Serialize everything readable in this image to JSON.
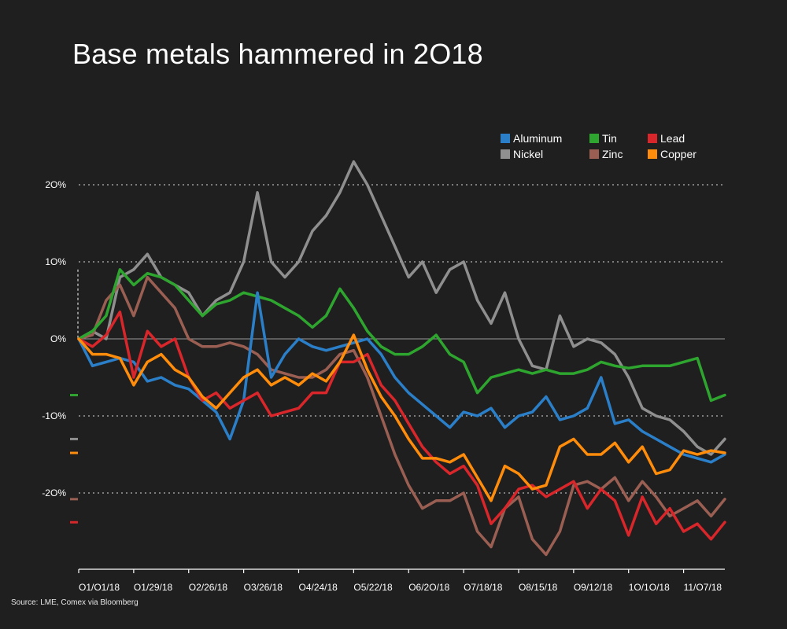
{
  "title": "Base metals hammered in 2O18",
  "source": "Source: LME, Comex via Bloomberg",
  "legend": [
    {
      "name": "Aluminum",
      "color": "#2a7fc8"
    },
    {
      "name": "Tin",
      "color": "#2ea52e"
    },
    {
      "name": "Lead",
      "color": "#d8262a"
    },
    {
      "name": "Nickel",
      "color": "#8f8f8f"
    },
    {
      "name": "Zinc",
      "color": "#9a5f52"
    },
    {
      "name": "Copper",
      "color": "#ff8c0a"
    }
  ],
  "chart_data": {
    "type": "line",
    "title": "Base metals hammered in 2O18",
    "xlabel": "",
    "ylabel": "",
    "ylim": [
      -30,
      25
    ],
    "yticks": [
      20,
      10,
      0,
      -10,
      -20
    ],
    "ytick_labels": [
      "2O%",
      "1O%",
      "O%",
      "-1O%",
      "-2O%"
    ],
    "xticks": [
      "O1/O1/18",
      "O1/29/18",
      "O2/26/18",
      "O3/26/18",
      "O4/24/18",
      "O5/22/18",
      "O6/2O/18",
      "O7/18/18",
      "O8/15/18",
      "O9/12/18",
      "1O/1O/18",
      "11/O7/18"
    ],
    "x_weeks": 48,
    "grid": "horizontal dotted",
    "legend_position": "top-right",
    "start_markers": {
      "Nickel_prior_range_top": 9
    },
    "end_markers": [
      {
        "name": "Tin",
        "value": -7.3
      },
      {
        "name": "Nickel",
        "value": -13.0
      },
      {
        "name": "Copper",
        "value": -14.8
      },
      {
        "name": "Zinc",
        "value": -20.8
      },
      {
        "name": "Lead",
        "value": -23.8
      }
    ],
    "series": [
      {
        "name": "Aluminum",
        "color": "#2a7fc8",
        "values": [
          0,
          -3.5,
          -3,
          -2.5,
          -3,
          -5.5,
          -5,
          -6,
          -6.5,
          -8,
          -9.5,
          -13,
          -8,
          6,
          -5,
          -2,
          0,
          -1,
          -1.5,
          -1,
          -0.5,
          0,
          -2,
          -5,
          -7,
          -8.5,
          -10,
          -11.5,
          -9.5,
          -10,
          -9,
          -11.5,
          -10,
          -9.5,
          -7.5,
          -10.5,
          -10,
          -9,
          -5,
          -11,
          -10.5,
          -12,
          -13,
          -14,
          -15,
          -15.5,
          -16,
          -15
        ]
      },
      {
        "name": "Tin",
        "color": "#2ea52e",
        "values": [
          0,
          1,
          3,
          9,
          7,
          8.5,
          8,
          7,
          5,
          3,
          4.5,
          5,
          6,
          5.5,
          5,
          4,
          3,
          1.5,
          3,
          6.5,
          4,
          1,
          -1,
          -2,
          -2,
          -1,
          0.5,
          -2,
          -3,
          -7,
          -5,
          -4.5,
          -4,
          -4.5,
          -4,
          -4.5,
          -4.5,
          -4,
          -3,
          -3.5,
          -3.8,
          -3.5,
          -3.5,
          -3.5,
          -3,
          -2.5,
          -8,
          -7.3
        ]
      },
      {
        "name": "Lead",
        "color": "#d8262a",
        "values": [
          0,
          -1,
          0.5,
          3.5,
          -5,
          1,
          -1,
          0,
          -5,
          -8,
          -7,
          -9,
          -8,
          -7,
          -10,
          -9.5,
          -9,
          -7,
          -7,
          -3,
          -3,
          -2,
          -6,
          -8,
          -11,
          -14,
          -16,
          -17.5,
          -16.5,
          -19,
          -24,
          -22,
          -19.5,
          -19,
          -20.5,
          -19.5,
          -18.5,
          -22,
          -19.5,
          -21,
          -25.5,
          -20.5,
          -24,
          -22,
          -25,
          -24,
          -26,
          -23.8
        ]
      },
      {
        "name": "Nickel",
        "color": "#8f8f8f",
        "values": [
          0,
          1,
          0,
          8,
          9,
          11,
          8,
          7,
          6,
          3,
          5,
          6,
          10,
          19,
          10,
          8,
          10,
          14,
          16,
          19,
          23,
          20,
          16,
          12,
          8,
          10,
          6,
          9,
          10,
          5,
          2,
          6,
          0,
          -3.5,
          -4,
          3,
          -1,
          0,
          -0.5,
          -2,
          -5,
          -9,
          -10,
          -10.5,
          -12,
          -14,
          -15,
          -13
        ]
      },
      {
        "name": "Zinc",
        "color": "#9a5f52",
        "values": [
          0,
          0.5,
          5,
          7,
          3,
          8,
          6,
          4,
          0,
          -1,
          -1,
          -0.5,
          -1,
          -2,
          -4,
          -4.5,
          -5,
          -5,
          -4,
          -2,
          -1.5,
          -5,
          -10,
          -15,
          -19,
          -22,
          -21,
          -21,
          -20,
          -25,
          -27,
          -22,
          -20.5,
          -26,
          -28,
          -25,
          -19,
          -18.5,
          -19.5,
          -18,
          -21,
          -18.5,
          -20.5,
          -23,
          -22,
          -21,
          -23,
          -20.8
        ]
      },
      {
        "name": "Copper",
        "color": "#ff8c0a",
        "values": [
          0,
          -2,
          -2,
          -2.5,
          -6,
          -3,
          -2,
          -4,
          -5,
          -7.5,
          -9,
          -7,
          -5,
          -4,
          -6,
          -5,
          -6,
          -4.5,
          -5.5,
          -3,
          0.5,
          -4,
          -7.5,
          -10,
          -13,
          -15.5,
          -15.5,
          -16,
          -15,
          -18,
          -21,
          -16.5,
          -17.5,
          -19.5,
          -19,
          -14,
          -13,
          -15,
          -15,
          -13.5,
          -16,
          -14,
          -17.5,
          -17,
          -14.5,
          -15,
          -14.5,
          -14.8
        ]
      }
    ]
  }
}
